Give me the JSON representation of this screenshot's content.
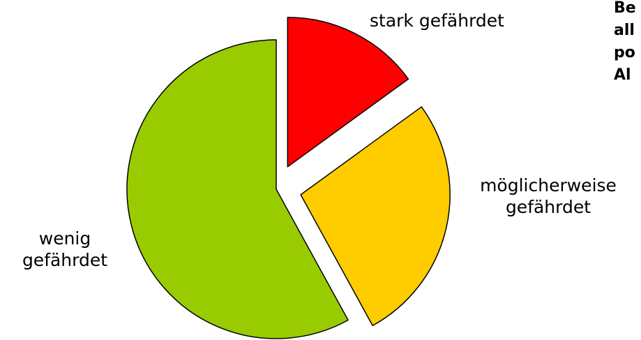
{
  "chart_data": {
    "type": "pie",
    "title_fragments": [
      "Be",
      "all",
      "po",
      "Al"
    ],
    "slices": [
      {
        "label": "stark gefährdet",
        "value": 15,
        "color": "#ff0000",
        "exploded": true
      },
      {
        "label": "möglicherweise gefährdet",
        "value": 27,
        "color": "#ffcc00",
        "exploded": true
      },
      {
        "label": "wenig gefährdet",
        "value": 58,
        "color": "#99cc00",
        "exploded": false
      }
    ],
    "start_angle_deg": 0,
    "direction": "clockwise",
    "legend": "none"
  },
  "labels": {
    "stark": "stark gefährdet",
    "moeglich_line1": "möglicherweise",
    "moeglich_line2": "gefährdet",
    "wenig_line1": "wenig",
    "wenig_line2": "gefährdet"
  }
}
